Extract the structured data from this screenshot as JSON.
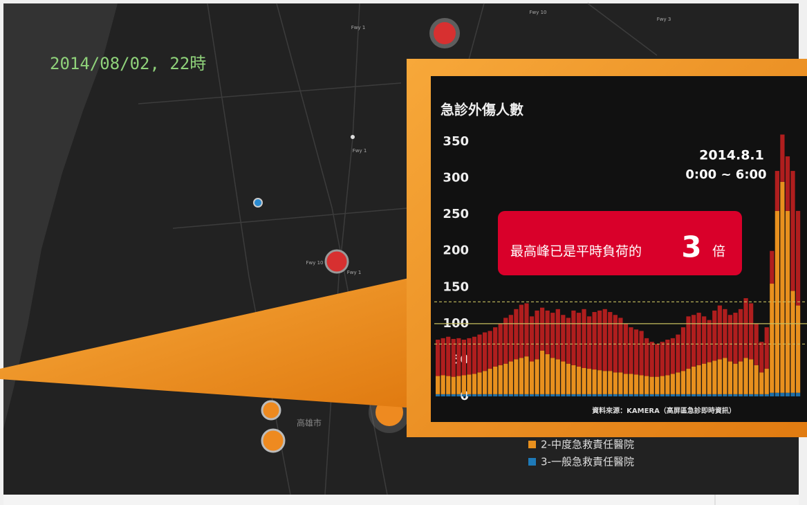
{
  "map": {
    "timestamp": "2014/08/02,  22時",
    "labels": [
      "Fwy 1",
      "Fwy 10",
      "Fwy 3",
      "Fwy 1",
      "Fwy 10",
      "Fwy 1",
      "高雄市"
    ],
    "legend": [
      "2-中度急救責任醫院",
      "3-一般急救責任醫院"
    ]
  },
  "chart_data": {
    "type": "bar",
    "stacked": true,
    "title": "急診外傷人數",
    "annotations": [
      "2014.8.1",
      "0:00 ~ 6:00"
    ],
    "callout": {
      "text": "最高峰已是平時負荷的",
      "number": 3,
      "suffix": "倍"
    },
    "source": "資料來源：KAMERA（高屏區急診即時資訊）",
    "ylim": [
      0,
      350
    ],
    "yticks": [
      0,
      50,
      100,
      150,
      200,
      250,
      300,
      350
    ],
    "reference_lines": [
      {
        "value": 130,
        "style": "dashed"
      },
      {
        "value": 100,
        "style": "solid"
      },
      {
        "value": 72,
        "style": "dashed"
      }
    ],
    "reference_color": "#c8c060",
    "series": [
      {
        "name": "3-一般急救責任醫院",
        "color": "#1e6fa8",
        "values": [
          3,
          3,
          3,
          3,
          3,
          3,
          3,
          3,
          3,
          3,
          3,
          3,
          3,
          3,
          3,
          3,
          3,
          3,
          3,
          3,
          3,
          3,
          3,
          3,
          3,
          3,
          3,
          3,
          3,
          3,
          3,
          3,
          3,
          3,
          3,
          3,
          3,
          3,
          3,
          3,
          3,
          3,
          3,
          3,
          3,
          3,
          3,
          3,
          3,
          3,
          3,
          3,
          3,
          3,
          3,
          3,
          3,
          3,
          3,
          3,
          3,
          3,
          3,
          3,
          5,
          5,
          5,
          5,
          5,
          5
        ]
      },
      {
        "name": "2-中度急救責任醫院",
        "color": "#e8901e",
        "values": [
          25,
          26,
          25,
          24,
          25,
          26,
          27,
          28,
          30,
          32,
          35,
          38,
          40,
          42,
          45,
          48,
          50,
          52,
          45,
          48,
          60,
          55,
          50,
          48,
          45,
          42,
          40,
          38,
          36,
          35,
          34,
          33,
          32,
          32,
          30,
          30,
          28,
          28,
          27,
          26,
          25,
          24,
          24,
          25,
          26,
          28,
          30,
          32,
          35,
          38,
          40,
          42,
          44,
          46,
          48,
          50,
          45,
          42,
          45,
          50,
          48,
          40,
          30,
          35,
          150,
          250,
          290,
          250,
          140,
          120
        ]
      },
      {
        "color": "#b01e1e",
        "values": [
          50,
          51,
          54,
          52,
          52,
          49,
          50,
          51,
          52,
          53,
          52,
          54,
          57,
          63,
          64,
          69,
          73,
          73,
          62,
          67,
          59,
          60,
          62,
          69,
          64,
          63,
          75,
          74,
          81,
          72,
          79,
          82,
          85,
          81,
          79,
          75,
          69,
          64,
          62,
          61,
          52,
          48,
          45,
          47,
          49,
          49,
          52,
          60,
          72,
          71,
          72,
          65,
          58,
          69,
          74,
          67,
          64,
          70,
          72,
          82,
          77,
          57,
          42,
          57,
          45,
          55,
          65,
          75,
          165,
          130
        ]
      }
    ]
  }
}
